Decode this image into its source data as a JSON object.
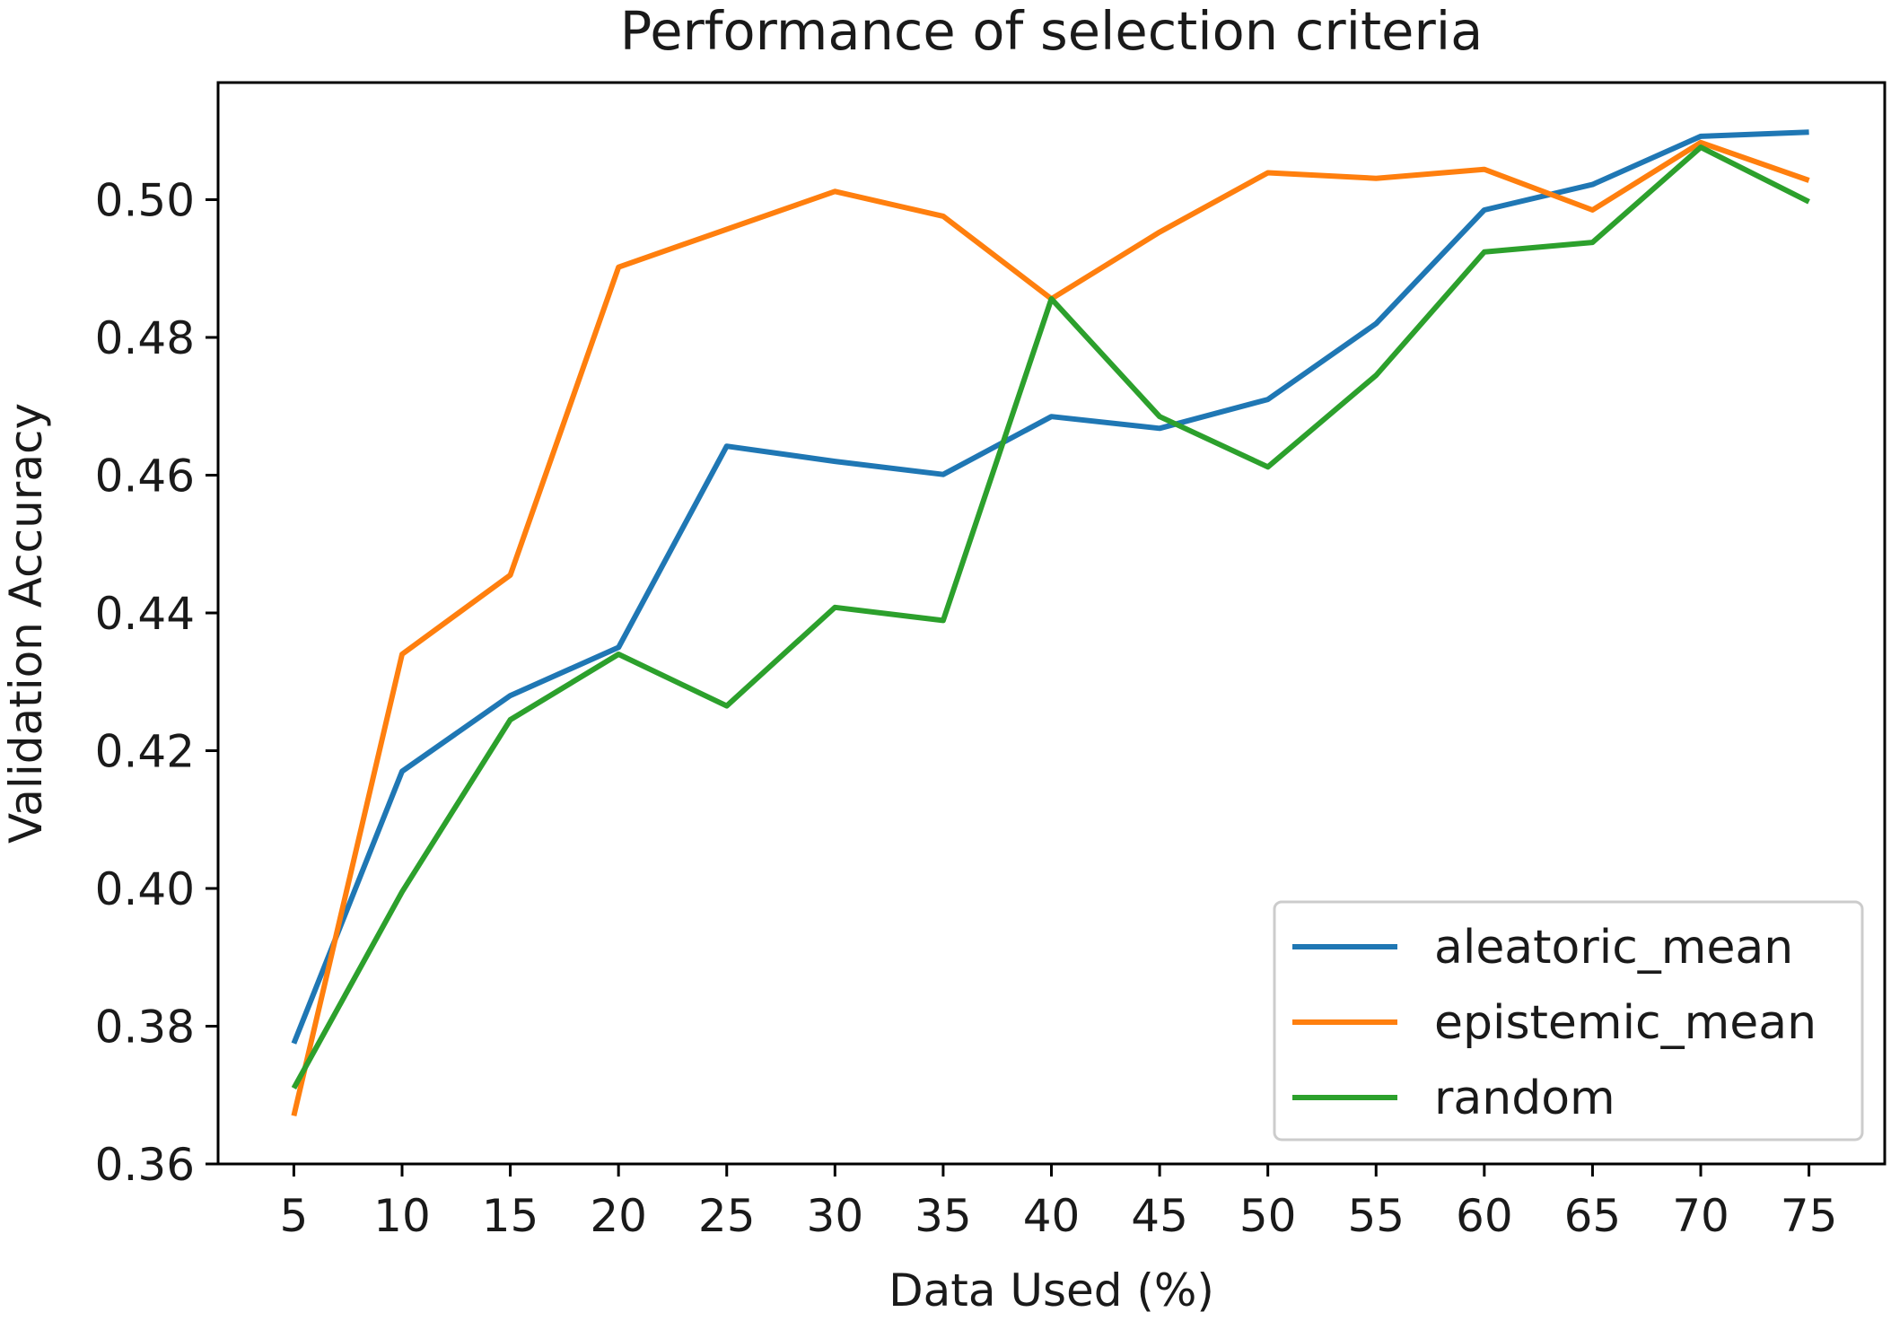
{
  "chart_data": {
    "type": "line",
    "title": "Performance of selection criteria",
    "xlabel": "Data Used (%)",
    "ylabel": "Validation Accuracy",
    "x": [
      5,
      10,
      15,
      20,
      25,
      30,
      35,
      40,
      45,
      50,
      55,
      60,
      65,
      70,
      75
    ],
    "x_ticks": [
      "5",
      "10",
      "15",
      "20",
      "25",
      "30",
      "35",
      "40",
      "45",
      "50",
      "55",
      "60",
      "65",
      "70",
      "75"
    ],
    "y_ticks": [
      "0.36",
      "0.38",
      "0.40",
      "0.42",
      "0.44",
      "0.46",
      "0.48",
      "0.50"
    ],
    "y_tick_values": [
      0.36,
      0.38,
      0.4,
      0.42,
      0.44,
      0.46,
      0.48,
      0.5
    ],
    "xlim": [
      1.5,
      78.5
    ],
    "ylim": [
      0.36,
      0.517
    ],
    "grid": false,
    "legend_position": "lower-right",
    "series": [
      {
        "name": "aleatoric_mean",
        "color": "#1f77b4",
        "values": [
          0.3775,
          0.417,
          0.428,
          0.435,
          0.4642,
          0.462,
          0.4601,
          0.4685,
          0.4668,
          0.471,
          0.482,
          0.4985,
          0.5022,
          0.5092,
          0.5098
        ]
      },
      {
        "name": "epistemic_mean",
        "color": "#ff7f0e",
        "values": [
          0.367,
          0.434,
          0.4455,
          0.4902,
          0.4957,
          0.5012,
          0.4976,
          0.4856,
          0.4953,
          0.5039,
          0.5031,
          0.5044,
          0.4985,
          0.5083,
          0.5028
        ]
      },
      {
        "name": "random",
        "color": "#2ca02c",
        "values": [
          0.371,
          0.3995,
          0.4245,
          0.434,
          0.4265,
          0.4408,
          0.4389,
          0.4856,
          0.4685,
          0.4612,
          0.4745,
          0.4924,
          0.4938,
          0.5076,
          0.4997
        ]
      }
    ]
  }
}
